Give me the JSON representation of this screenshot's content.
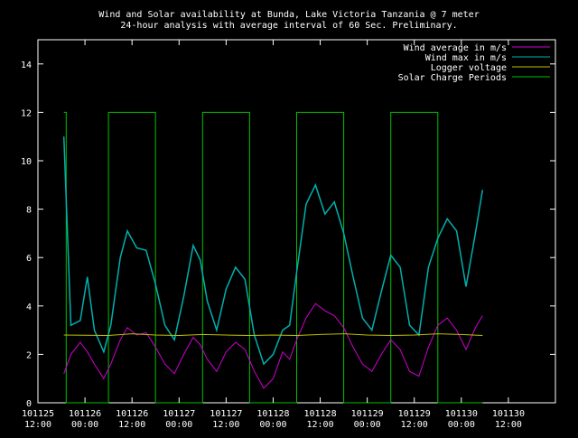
{
  "chart_data": {
    "type": "line",
    "title": "Wind and Solar availability at Bunda, Lake Victoria Tanzania @ 7 meter",
    "subtitle": "24-hour analysis with average interval of 60 Sec. Preliminary.",
    "xlabel": "",
    "ylabel": "",
    "ylim": [
      0,
      15
    ],
    "yticks": [
      "0",
      "2",
      "4",
      "6",
      "8",
      "10",
      "12",
      "14"
    ],
    "xlim": [
      0,
      11
    ],
    "xticks": [
      {
        "line1": "101125",
        "line2": "12:00"
      },
      {
        "line1": "101126",
        "line2": "00:00"
      },
      {
        "line1": "101126",
        "line2": "12:00"
      },
      {
        "line1": "101127",
        "line2": "00:00"
      },
      {
        "line1": "101127",
        "line2": "12:00"
      },
      {
        "line1": "101128",
        "line2": "00:00"
      },
      {
        "line1": "101128",
        "line2": "12:00"
      },
      {
        "line1": "101129",
        "line2": "00:00"
      },
      {
        "line1": "101129",
        "line2": "12:00"
      },
      {
        "line1": "101130",
        "line2": "00:00"
      },
      {
        "line1": "101130",
        "line2": "12:00"
      }
    ],
    "grid": false,
    "legend_position": "top-right",
    "background": "#000000",
    "axis_color": "#ffffff",
    "series": [
      {
        "name": "Wind average in m/s",
        "color": "#d000d0",
        "x": [
          0.55,
          0.7,
          0.9,
          1.05,
          1.2,
          1.4,
          1.55,
          1.75,
          1.9,
          2.1,
          2.3,
          2.5,
          2.7,
          2.9,
          3.1,
          3.3,
          3.45,
          3.6,
          3.8,
          4.0,
          4.2,
          4.4,
          4.6,
          4.8,
          5.0,
          5.2,
          5.35,
          5.5,
          5.7,
          5.9,
          6.1,
          6.3,
          6.5,
          6.7,
          6.9,
          7.1,
          7.3,
          7.5,
          7.7,
          7.9,
          8.1,
          8.3,
          8.5,
          8.7,
          8.9,
          9.1,
          9.3,
          9.45
        ],
        "values": [
          1.2,
          2.0,
          2.5,
          2.1,
          1.6,
          1.0,
          1.6,
          2.6,
          3.1,
          2.8,
          2.9,
          2.3,
          1.6,
          1.2,
          2.0,
          2.7,
          2.4,
          1.8,
          1.3,
          2.1,
          2.5,
          2.2,
          1.3,
          0.6,
          1.0,
          2.1,
          1.8,
          2.6,
          3.5,
          4.1,
          3.8,
          3.6,
          3.1,
          2.3,
          1.6,
          1.3,
          2.0,
          2.6,
          2.2,
          1.3,
          1.1,
          2.3,
          3.2,
          3.5,
          3.0,
          2.2,
          3.1,
          3.6
        ]
      },
      {
        "name": "Wind max in m/s",
        "color": "#00b0b0",
        "x": [
          0.55,
          0.7,
          0.9,
          1.05,
          1.2,
          1.4,
          1.55,
          1.75,
          1.9,
          2.1,
          2.3,
          2.5,
          2.7,
          2.9,
          3.1,
          3.3,
          3.45,
          3.6,
          3.8,
          4.0,
          4.2,
          4.4,
          4.6,
          4.8,
          5.0,
          5.2,
          5.35,
          5.5,
          5.7,
          5.9,
          6.1,
          6.3,
          6.5,
          6.7,
          6.9,
          7.1,
          7.3,
          7.5,
          7.7,
          7.9,
          8.1,
          8.3,
          8.5,
          8.7,
          8.9,
          9.1,
          9.3,
          9.45
        ],
        "values": [
          11.0,
          3.2,
          3.4,
          5.2,
          3.0,
          2.1,
          3.2,
          6.0,
          7.1,
          6.4,
          6.3,
          4.9,
          3.2,
          2.6,
          4.4,
          6.5,
          5.9,
          4.2,
          3.0,
          4.7,
          5.6,
          5.1,
          2.8,
          1.6,
          2.0,
          3.0,
          3.2,
          5.4,
          8.2,
          9.0,
          7.8,
          8.3,
          7.0,
          5.2,
          3.5,
          3.0,
          4.6,
          6.1,
          5.6,
          3.2,
          2.8,
          5.6,
          6.8,
          7.6,
          7.1,
          4.8,
          7.0,
          8.8
        ]
      },
      {
        "name": "Logger voltage",
        "color": "#c0c000",
        "x": [
          0.55,
          1.5,
          2.0,
          2.5,
          3.0,
          3.5,
          4.0,
          4.5,
          5.0,
          5.5,
          6.0,
          6.5,
          7.0,
          7.5,
          8.0,
          8.5,
          9.0,
          9.45
        ],
        "values": [
          2.8,
          2.78,
          2.85,
          2.8,
          2.78,
          2.82,
          2.8,
          2.78,
          2.8,
          2.78,
          2.82,
          2.85,
          2.8,
          2.78,
          2.8,
          2.85,
          2.82,
          2.78
        ]
      },
      {
        "name": "Solar Charge Periods",
        "color": "#00c000",
        "x": [
          0.55,
          0.55,
          0.6,
          0.6,
          1.5,
          1.5,
          2.5,
          2.5,
          3.5,
          3.5,
          4.5,
          4.5,
          5.5,
          5.5,
          6.5,
          6.5,
          7.5,
          7.5,
          8.5,
          8.5,
          9.45
        ],
        "values": [
          12,
          12,
          12,
          0,
          0,
          12,
          12,
          0,
          0,
          12,
          12,
          0,
          0,
          12,
          12,
          0,
          0,
          12,
          12,
          0,
          0
        ]
      }
    ]
  }
}
